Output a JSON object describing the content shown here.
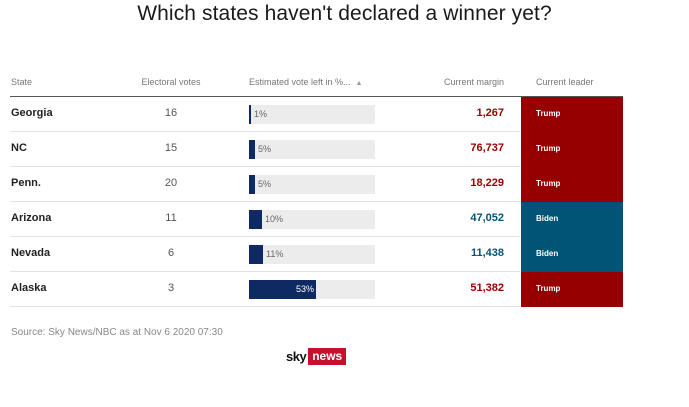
{
  "title": "Which states haven't declared a winner yet?",
  "colors": {
    "trump": "#970000",
    "biden": "#025476",
    "bar_fill": "#0f2a63",
    "bar_track": "#ececec"
  },
  "table": {
    "headers": {
      "state": "State",
      "electoral_votes": "Electoral votes",
      "vote_left": "Estimated vote left in %...",
      "vote_left_sort_icon": "▲",
      "margin": "Current margin",
      "leader": "Current leader"
    },
    "rows": [
      {
        "state": "Georgia",
        "electoral_votes": "16",
        "vote_left_pct": 1,
        "vote_left_label": "1%",
        "margin": "1,267",
        "leader": "Trump",
        "leader_color": "#970000"
      },
      {
        "state": "NC",
        "electoral_votes": "15",
        "vote_left_pct": 5,
        "vote_left_label": "5%",
        "margin": "76,737",
        "leader": "Trump",
        "leader_color": "#970000"
      },
      {
        "state": "Penn.",
        "electoral_votes": "20",
        "vote_left_pct": 5,
        "vote_left_label": "5%",
        "margin": "18,229",
        "leader": "Trump",
        "leader_color": "#970000"
      },
      {
        "state": "Arizona",
        "electoral_votes": "11",
        "vote_left_pct": 10,
        "vote_left_label": "10%",
        "margin": "47,052",
        "leader": "Biden",
        "leader_color": "#025476"
      },
      {
        "state": "Nevada",
        "electoral_votes": "6",
        "vote_left_pct": 11,
        "vote_left_label": "11%",
        "margin": "11,438",
        "leader": "Biden",
        "leader_color": "#025476"
      },
      {
        "state": "Alaska",
        "electoral_votes": "3",
        "vote_left_pct": 53,
        "vote_left_label": "53%",
        "margin": "51,382",
        "leader": "Trump",
        "leader_color": "#970000"
      }
    ]
  },
  "source": "Source: Sky News/NBC as at Nov 6 2020 07:30",
  "logo": {
    "sky": "sky",
    "news": "news"
  }
}
